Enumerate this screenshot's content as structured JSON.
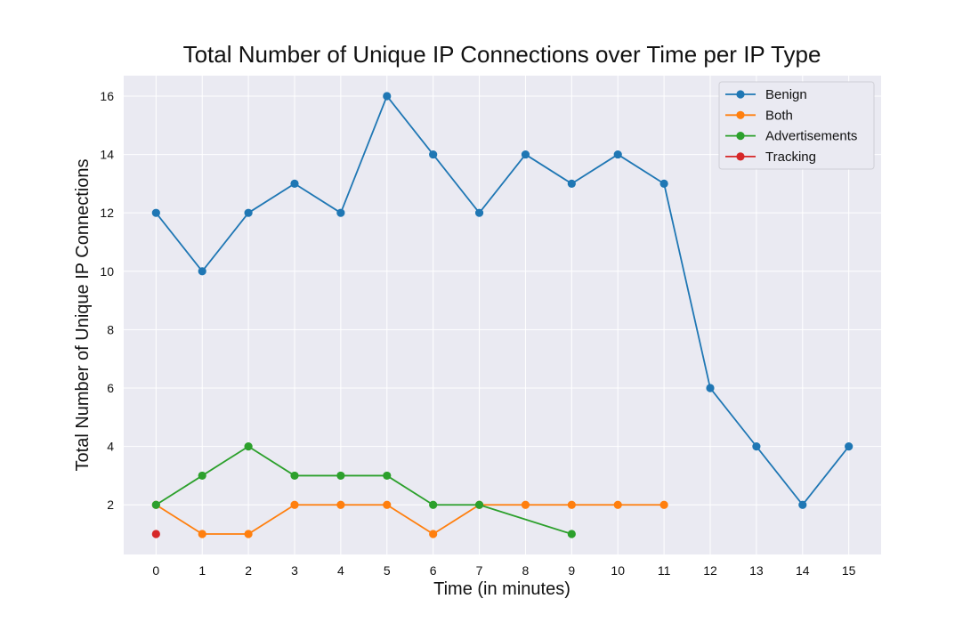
{
  "chart_data": {
    "type": "line",
    "title": "Total Number of Unique IP Connections over Time per IP Type",
    "xlabel": "Time (in minutes)",
    "ylabel": "Total Number of Unique IP Connections",
    "xlim": [
      -0.7,
      15.7
    ],
    "ylim": [
      0.3,
      16.7
    ],
    "xticks": [
      0,
      1,
      2,
      3,
      4,
      5,
      6,
      7,
      8,
      9,
      10,
      11,
      12,
      13,
      14,
      15
    ],
    "yticks": [
      2,
      4,
      6,
      8,
      10,
      12,
      14,
      16
    ],
    "grid": true,
    "legend_position": "top-right",
    "series": [
      {
        "name": "Benign",
        "color": "#1f77b4",
        "x": [
          0,
          1,
          2,
          3,
          4,
          5,
          6,
          7,
          8,
          9,
          10,
          11,
          12,
          13,
          14,
          15
        ],
        "y": [
          12,
          10,
          12,
          13,
          12,
          16,
          14,
          12,
          14,
          13,
          14,
          13,
          6,
          4,
          2,
          4
        ]
      },
      {
        "name": "Both",
        "color": "#ff7f0e",
        "x": [
          0,
          1,
          2,
          3,
          4,
          5,
          6,
          7,
          8,
          9,
          10,
          11
        ],
        "y": [
          2,
          1,
          1,
          2,
          2,
          2,
          1,
          2,
          2,
          2,
          2,
          2
        ]
      },
      {
        "name": "Advertisements",
        "color": "#2ca02c",
        "x": [
          0,
          1,
          2,
          3,
          4,
          5,
          6,
          7,
          9
        ],
        "y": [
          2,
          3,
          4,
          3,
          3,
          3,
          2,
          2,
          1
        ]
      },
      {
        "name": "Tracking",
        "color": "#d62728",
        "x": [
          0
        ],
        "y": [
          1
        ]
      }
    ]
  }
}
